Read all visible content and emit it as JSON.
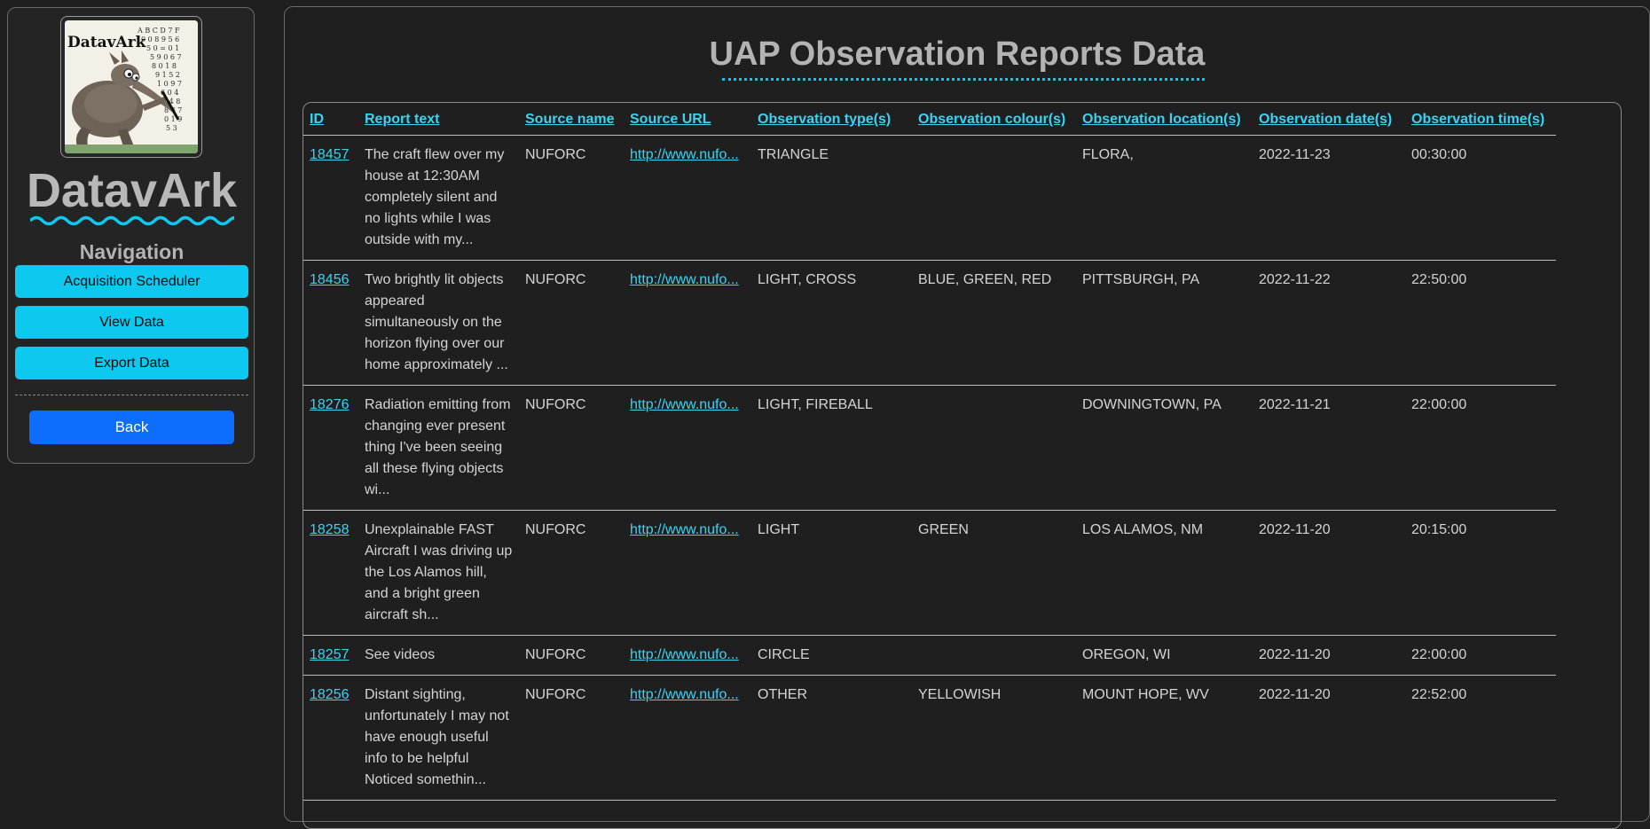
{
  "sidebar": {
    "logo_text": "DatavArk",
    "brand": "DatavArk",
    "nav_heading": "Navigation",
    "nav_items": [
      {
        "label": "Acquisition Scheduler"
      },
      {
        "label": "View Data"
      },
      {
        "label": "Export Data"
      }
    ],
    "back_label": "Back"
  },
  "main": {
    "title": "UAP Observation Reports Data",
    "columns": [
      "ID",
      "Report text",
      "Source name",
      "Source URL",
      "Observation type(s)",
      "Observation colour(s)",
      "Observation location(s)",
      "Observation date(s)",
      "Observation time(s)"
    ],
    "rows": [
      {
        "id": "18457",
        "text": "The craft flew over my house at 12:30AM completely silent and no lights while I was outside with my...",
        "source": "NUFORC",
        "url": "http://www.nufo...",
        "type": "TRIANGLE",
        "colour": "",
        "location": "FLORA,",
        "date": "2022-11-23",
        "time": "00:30:00"
      },
      {
        "id": "18456",
        "text": "Two brightly lit objects appeared simultaneously on the horizon flying over our home approximately ...",
        "source": "NUFORC",
        "url": "http://www.nufo...",
        "type": "LIGHT, CROSS",
        "colour": "BLUE, GREEN, RED",
        "location": "PITTSBURGH, PA",
        "date": "2022-11-22",
        "time": "22:50:00"
      },
      {
        "id": "18276",
        "text": "Radiation emitting from changing ever present thing I've been seeing all these flying objects wi...",
        "source": "NUFORC",
        "url": "http://www.nufo...",
        "type": "LIGHT, FIREBALL",
        "colour": "",
        "location": "DOWNINGTOWN, PA",
        "date": "2022-11-21",
        "time": "22:00:00"
      },
      {
        "id": "18258",
        "text": "Unexplainable FAST Aircraft I was driving up the Los Alamos hill, and a bright green aircraft sh...",
        "source": "NUFORC",
        "url": "http://www.nufo...",
        "type": "LIGHT",
        "colour": "GREEN",
        "location": "LOS ALAMOS, NM",
        "date": "2022-11-20",
        "time": "20:15:00"
      },
      {
        "id": "18257",
        "text": "See videos",
        "source": "NUFORC",
        "url": "http://www.nufo...",
        "type": "CIRCLE",
        "colour": "",
        "location": "OREGON, WI",
        "date": "2022-11-20",
        "time": "22:00:00"
      },
      {
        "id": "18256",
        "text": "Distant sighting, unfortunately I may not have enough useful info to be helpful Noticed somethin...",
        "source": "NUFORC",
        "url": "http://www.nufo...",
        "type": "OTHER",
        "colour": "YELLOWISH",
        "location": "MOUNT HOPE, WV",
        "date": "2022-11-20",
        "time": "22:52:00"
      }
    ]
  },
  "colors": {
    "accent": "#0dc8ef",
    "link": "#3ad3f2",
    "back_button": "#0d6efd",
    "background": "#1f1f1f"
  }
}
